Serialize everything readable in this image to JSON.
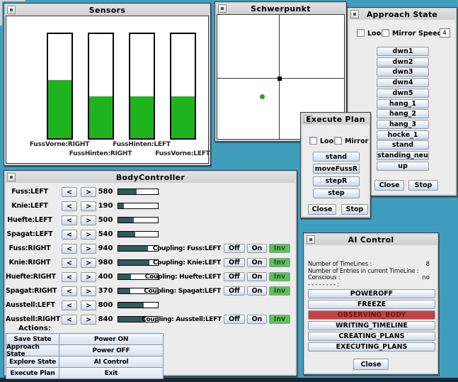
{
  "colors": {
    "desktop": "#3f9dbd",
    "taskbar_strip": "#1a2433",
    "sensor_fill": "#1db41d",
    "progress_fill": "#2d5c59",
    "inv_active_green": "#5fc154",
    "ai_active_red": "#c64242",
    "point_green": "#22aa22"
  },
  "windows": {
    "sensors": {
      "title": "Sensors",
      "bars": [
        {
          "label": "FussVorne:RIGHT",
          "fill_pct": 56
        },
        {
          "label": "FussHinten:RIGHT",
          "fill_pct": 40
        },
        {
          "label": "FussHinten:LEFT",
          "fill_pct": 40
        },
        {
          "label": "FussVorne:LEFT",
          "fill_pct": 40
        }
      ]
    },
    "schwerpunkt": {
      "title": "Schwerpunkt"
    },
    "approach_state": {
      "title": "Approach State",
      "loop_label": "Loop",
      "mirror_label": "Mirror",
      "speed_label": "Speed:",
      "speed_value": "4",
      "buttons": [
        "dwn1",
        "dwn2",
        "dwn3",
        "dwn4",
        "dwn5",
        "hang_1",
        "hang_2",
        "hang_3",
        "hocke_1",
        "stand",
        "standing_neu",
        "up"
      ],
      "close_label": "Close",
      "stop_label": "Stop"
    },
    "execute_plan": {
      "title": "Execute Plan",
      "loop_label": "Loop",
      "mirror_label": "Mirror",
      "buttons": [
        "stand",
        "moveFussR",
        "stepR",
        "step"
      ],
      "close_label": "Close",
      "stop_label": "Stop"
    },
    "body_controller": {
      "title": "BodyController",
      "dec_label": "<",
      "inc_label": ">",
      "coupling_buttons": [
        "Off",
        "On",
        "Inv"
      ],
      "rows": [
        {
          "label": "Fuss:LEFT",
          "value": "580",
          "fill_pct": 46,
          "coupling": null
        },
        {
          "label": "Knie:LEFT",
          "value": "190",
          "fill_pct": 15,
          "coupling": null
        },
        {
          "label": "Huefte:LEFT",
          "value": "500",
          "fill_pct": 40,
          "coupling": null
        },
        {
          "label": "Spagat:LEFT",
          "value": "540",
          "fill_pct": 43,
          "coupling": null
        },
        {
          "label": "Fuss:RIGHT",
          "value": "940",
          "fill_pct": 75,
          "coupling": "Coupling: Fuss:LEFT"
        },
        {
          "label": "Knie:RIGHT",
          "value": "980",
          "fill_pct": 78,
          "coupling": "Coupling: Knie:LEFT"
        },
        {
          "label": "Huefte:RIGHT",
          "value": "400",
          "fill_pct": 32,
          "coupling": "Coupling: Huefte:LEFT"
        },
        {
          "label": "Spagat:RIGHT",
          "value": "370",
          "fill_pct": 30,
          "coupling": "Coupling: Spagat:LEFT"
        },
        {
          "label": "Ausstell:LEFT",
          "value": "800",
          "fill_pct": 64,
          "coupling": null
        },
        {
          "label": "Ausstell:RIGHT",
          "value": "840",
          "fill_pct": 67,
          "coupling": "Coupling: Ausstell:LEFT"
        }
      ],
      "actions_label": "Actions:",
      "action_rows": [
        [
          "Save State",
          "Power ON"
        ],
        [
          "Approach State",
          "Power OFF"
        ],
        [
          "Explore State",
          "AI Control"
        ],
        [
          "Execute Plan",
          "Exit"
        ]
      ]
    },
    "ai_control": {
      "title": "AI Control",
      "stats": [
        {
          "label": "Number of TimeLines :",
          "value": "8"
        },
        {
          "label": "Number of Entries in current TimeLine :",
          "value": ""
        },
        {
          "label": "Conscious :",
          "value": "no"
        },
        {
          "label": "- - - - - - - - :",
          "value": ""
        }
      ],
      "buttons": [
        {
          "label": "POWEROFF",
          "active": false
        },
        {
          "label": "FREEZE",
          "active": false
        },
        {
          "label": "OBSERVING_BODY",
          "active": true
        },
        {
          "label": "WRITING_TIMELINE",
          "active": false
        },
        {
          "label": "CREATING_PLANS",
          "active": false
        },
        {
          "label": "EXECUTING_PLANS",
          "active": false
        }
      ],
      "close_label": "Close"
    }
  }
}
